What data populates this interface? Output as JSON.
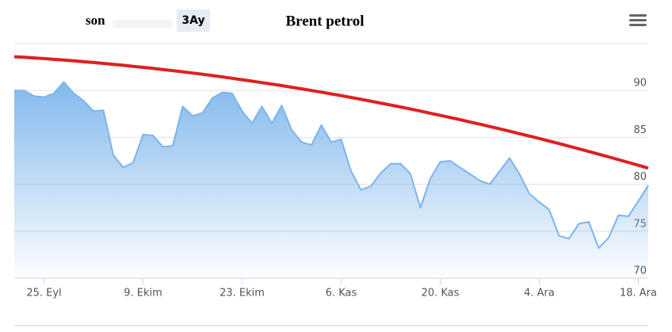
{
  "chart_data": {
    "type": "area",
    "title": "Brent petrol",
    "range_label": "son",
    "range_button": "3Ay",
    "categories": [
      null,
      null,
      null,
      "25. Eyl",
      null,
      null,
      null,
      null,
      null,
      null,
      null,
      null,
      null,
      "9. Ekim",
      null,
      null,
      null,
      null,
      null,
      null,
      null,
      null,
      null,
      "23. Ekim",
      null,
      null,
      null,
      null,
      null,
      null,
      null,
      null,
      null,
      "6. Kas",
      null,
      null,
      null,
      null,
      null,
      null,
      null,
      null,
      null,
      "20. Kas",
      null,
      null,
      null,
      null,
      null,
      null,
      null,
      null,
      null,
      "4. Ara",
      null,
      null,
      null,
      null,
      null,
      null,
      null,
      null,
      null,
      "18. Ara",
      null
    ],
    "series": [
      {
        "color": "#7cb5ec",
        "values": [
          90,
          90,
          89.4,
          89.3,
          89.7,
          90.9,
          89.7,
          88.9,
          87.8,
          87.9,
          83.1,
          81.8,
          82.3,
          85.3,
          85.2,
          84,
          84.1,
          88.3,
          87.3,
          87.6,
          89.2,
          89.8,
          89.7,
          87.8,
          86.5,
          88.3,
          86.5,
          88.4,
          85.8,
          84.5,
          84.2,
          86.3,
          84.5,
          84.8,
          81.4,
          79.4,
          79.8,
          81.2,
          82.2,
          82.2,
          81.1,
          77.5,
          80.6,
          82.4,
          82.5,
          81.8,
          81.1,
          80.4,
          80,
          81.4,
          82.8,
          81.1,
          79,
          78.1,
          77.3,
          74.5,
          74.2,
          75.8,
          76,
          73.2,
          74.3,
          76.7,
          76.6,
          78.2,
          79.9
        ]
      },
      {
        "color": "#e0201f",
        "values": [
          93.6,
          93.54,
          93.47,
          93.4,
          93.32,
          93.24,
          93.16,
          93.07,
          92.98,
          92.89,
          92.79,
          92.69,
          92.58,
          92.47,
          92.36,
          92.24,
          92.12,
          91.99,
          91.86,
          91.73,
          91.59,
          91.45,
          91.3,
          91.15,
          91,
          90.84,
          90.68,
          90.52,
          90.35,
          90.18,
          90,
          89.82,
          89.64,
          89.45,
          89.26,
          89.06,
          88.86,
          88.66,
          88.45,
          88.24,
          88.02,
          87.8,
          87.58,
          87.35,
          87.12,
          86.89,
          86.65,
          86.41,
          86.16,
          85.91,
          85.66,
          85.4,
          85.14,
          84.88,
          84.61,
          84.34,
          84.06,
          83.78,
          83.5,
          83.21,
          82.92,
          82.63,
          82.33,
          82.03,
          81.72
        ]
      }
    ],
    "ylim": [
      70,
      95
    ],
    "yticks": [
      70,
      75,
      80,
      85,
      90
    ],
    "grid": true
  }
}
